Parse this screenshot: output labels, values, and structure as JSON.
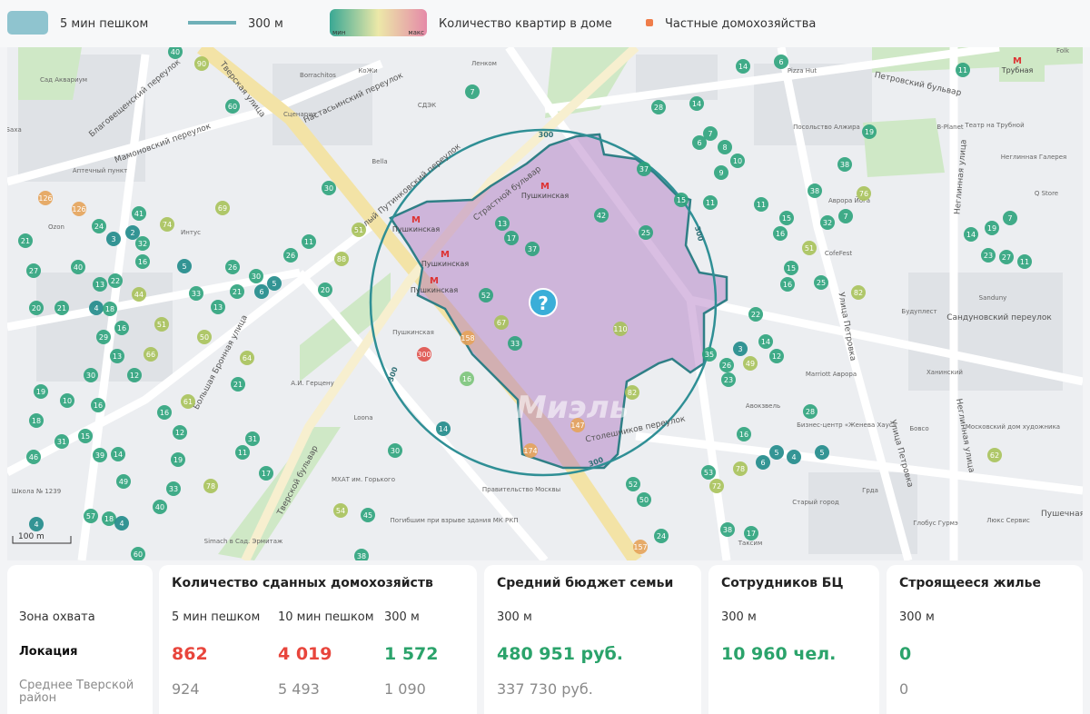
{
  "legend": {
    "walk_zone": "5 мин пешком",
    "radius": "300 м",
    "gradient_min": "мин",
    "gradient_max": "макс",
    "gradient_label": "Количество квартир в доме",
    "private": "Частные домохозяйства"
  },
  "map": {
    "radius_label": "300",
    "center_icon": "?",
    "watermark": "Миэль",
    "scale": "100 m",
    "metro": [
      "Пушкинская",
      "Пушкинская",
      "Пушкинская",
      "Пушкинская",
      "Трубная"
    ],
    "streets": [
      "Тверская улица",
      "Страстной бульвар",
      "Петровский бульвар",
      "Тверской бульвар",
      "Большая Бронная улица",
      "Мамоновский переулок",
      "Благовещенский переулок",
      "Настасьинский переулок",
      "Малый Путинковский переулок",
      "Улица Петровка",
      "Неглинная улица",
      "Сандуновский переулок",
      "Столешников переулок",
      "Улица Петровка",
      "Неглинная улица",
      "Пушечная"
    ],
    "places": [
      "Сад Аквариум",
      "Ozon",
      "Интус",
      "Аптечный пункт",
      "Borrachitos",
      "КоЖи",
      "СДЭК",
      "Сценарио",
      "Ленком",
      "Pizza Hut",
      "Bella",
      "Пушкинская",
      "А.И. Герцену",
      "Loona",
      "МХАТ им. Горького",
      "Правительство Москвы",
      "Погибшим при взрыве здания МК РКП",
      "Simach в Сад. Эрмитаж",
      "Школа № 1239",
      "Баха",
      "Marriott Аврора",
      "Бизнес-центр «Женева Хаус»",
      "Бовсо",
      "Московский дом художника",
      "Глобус Гурмэ",
      "Люкс Сервис",
      "Старый город",
      "Таксим",
      "Грдa",
      "Ханинский",
      "Будуплест",
      "Sandunу",
      "СofeFest",
      "Аврора Йога",
      "Q Store",
      "Неглинная Галерея",
      "Театр на Трубной",
      "B-Planet",
      "Посольство Алжира",
      "Folk",
      "Авокзвель"
    ],
    "markers": {
      "values": [
        40,
        90,
        60,
        126,
        126,
        24,
        41,
        2,
        3,
        32,
        21,
        27,
        16,
        40,
        13,
        22,
        44,
        5,
        4,
        18,
        20,
        21,
        33,
        26,
        30,
        21,
        6,
        5,
        13,
        69,
        74,
        26,
        11,
        30,
        51,
        88,
        20,
        51,
        50,
        16,
        29,
        13,
        66,
        64,
        12,
        30,
        19,
        10,
        16,
        18,
        61,
        21,
        16,
        12,
        15,
        31,
        46,
        39,
        14,
        11,
        31,
        17,
        30,
        19,
        49,
        33,
        78,
        40,
        57,
        18,
        4,
        54,
        45,
        38,
        60,
        300,
        158,
        52,
        67,
        33,
        13,
        17,
        37,
        42,
        25,
        37,
        110,
        82,
        147,
        174,
        16,
        14,
        7,
        28,
        14,
        14,
        6,
        11,
        19,
        6,
        7,
        8,
        10,
        9,
        11,
        15,
        38,
        38,
        76,
        11,
        7,
        32,
        15,
        16,
        51,
        15,
        16,
        25,
        82,
        22,
        19,
        7,
        14,
        23,
        27,
        11,
        14,
        12,
        3,
        35,
        26,
        49,
        23,
        28,
        16,
        5,
        4,
        5,
        6,
        78,
        53,
        72,
        52,
        50,
        38,
        17,
        62,
        157,
        24,
        4
      ],
      "colors": [
        "#2ea37c",
        "#a9c25a",
        "#2ea37c",
        "#e6a35a",
        "#e6a35a",
        "#2ea37c",
        "#2ea37c",
        "#1f8a8a",
        "#1f8a8a",
        "#2ea37c",
        "#2ea37c",
        "#2ea37c",
        "#2ea37c",
        "#2ea37c",
        "#2ea37c",
        "#2ea37c",
        "#a9c25a",
        "#1f8a8a",
        "#1f8a8a",
        "#2ea37c",
        "#2ea37c",
        "#2ea37c",
        "#2ea37c",
        "#2ea37c",
        "#2ea37c",
        "#2ea37c",
        "#1f8a8a",
        "#1f8a8a",
        "#2ea37c",
        "#a9c25a",
        "#a9c25a",
        "#2ea37c",
        "#2ea37c",
        "#2ea37c",
        "#a9c25a",
        "#a9c25a",
        "#2ea37c",
        "#a9c25a",
        "#a9c25a",
        "#2ea37c",
        "#2ea37c",
        "#2ea37c",
        "#a9c25a",
        "#a9c25a",
        "#2ea37c",
        "#2ea37c",
        "#2ea37c",
        "#2ea37c",
        "#2ea37c",
        "#2ea37c",
        "#a9c25a",
        "#2ea37c",
        "#2ea37c",
        "#2ea37c",
        "#2ea37c",
        "#2ea37c",
        "#2ea37c",
        "#2ea37c",
        "#2ea37c",
        "#2ea37c",
        "#2ea37c",
        "#2ea37c",
        "#2ea37c",
        "#2ea37c",
        "#2ea37c",
        "#2ea37c",
        "#a9c25a",
        "#2ea37c",
        "#2ea37c",
        "#2ea37c",
        "#1f8a8a",
        "#a9c25a",
        "#2ea37c",
        "#2ea37c",
        "#2ea37c",
        "#e0504a",
        "#e6a35a",
        "#2ea37c",
        "#a9c25a",
        "#2ea37c",
        "#2ea37c",
        "#2ea37c",
        "#2ea37c",
        "#2ea37c",
        "#2ea37c",
        "#2ea37c",
        "#a9c25a",
        "#a9c25a",
        "#e6a35a",
        "#e6a35a",
        "#7cc47a",
        "#1f8a8a",
        "#2ea37c",
        "#2ea37c",
        "#2ea37c",
        "#2ea37c",
        "#2ea37c",
        "#2ea37c",
        "#2ea37c",
        "#2ea37c",
        "#2ea37c",
        "#2ea37c",
        "#2ea37c",
        "#2ea37c",
        "#2ea37c",
        "#2ea37c",
        "#2ea37c",
        "#2ea37c",
        "#a9c25a",
        "#2ea37c",
        "#2ea37c",
        "#2ea37c",
        "#2ea37c",
        "#2ea37c",
        "#a9c25a",
        "#2ea37c",
        "#2ea37c",
        "#2ea37c",
        "#a9c25a",
        "#2ea37c",
        "#2ea37c",
        "#2ea37c",
        "#2ea37c",
        "#2ea37c",
        "#2ea37c",
        "#2ea37c",
        "#2ea37c",
        "#2ea37c",
        "#1f8a8a",
        "#2ea37c",
        "#2ea37c",
        "#a9c25a",
        "#2ea37c",
        "#2ea37c",
        "#2ea37c",
        "#1f8a8a",
        "#1f8a8a",
        "#1f8a8a",
        "#1f8a8a",
        "#a9c25a",
        "#2ea37c",
        "#a9c25a",
        "#2ea37c",
        "#2ea37c",
        "#2ea37c",
        "#2ea37c",
        "#a9c25a",
        "#e6a35a",
        "#2ea37c",
        "#1f8a8a"
      ]
    }
  },
  "summary": {
    "rows": [
      "Зона охвата",
      "Локация",
      "Среднее Тверской район"
    ]
  },
  "cards": [
    {
      "title": "Количество сданных домохозяйств",
      "columns": [
        {
          "head": "5 мин пешком",
          "location": "862",
          "location_color": "#e8453c",
          "district": "924"
        },
        {
          "head": "10 мин пешком",
          "location": "4 019",
          "location_color": "#e8453c",
          "district": "5 493"
        },
        {
          "head": "300 м",
          "location": "1 572",
          "location_color": "#2ba36b",
          "district": "1 090"
        }
      ]
    },
    {
      "title": "Средний бюджет семьи",
      "columns": [
        {
          "head": "300 м",
          "location": "480 951 руб.",
          "location_color": "#2ba36b",
          "district": "337 730 руб."
        }
      ]
    },
    {
      "title": "Сотрудников БЦ",
      "columns": [
        {
          "head": "300 м",
          "location": "10 960 чел.",
          "location_color": "#2ba36b"
        }
      ]
    },
    {
      "title": "Строящееся жилье",
      "columns": [
        {
          "head": "300 м",
          "location": "0",
          "location_color": "#2ba36b",
          "district": "0"
        }
      ]
    }
  ]
}
